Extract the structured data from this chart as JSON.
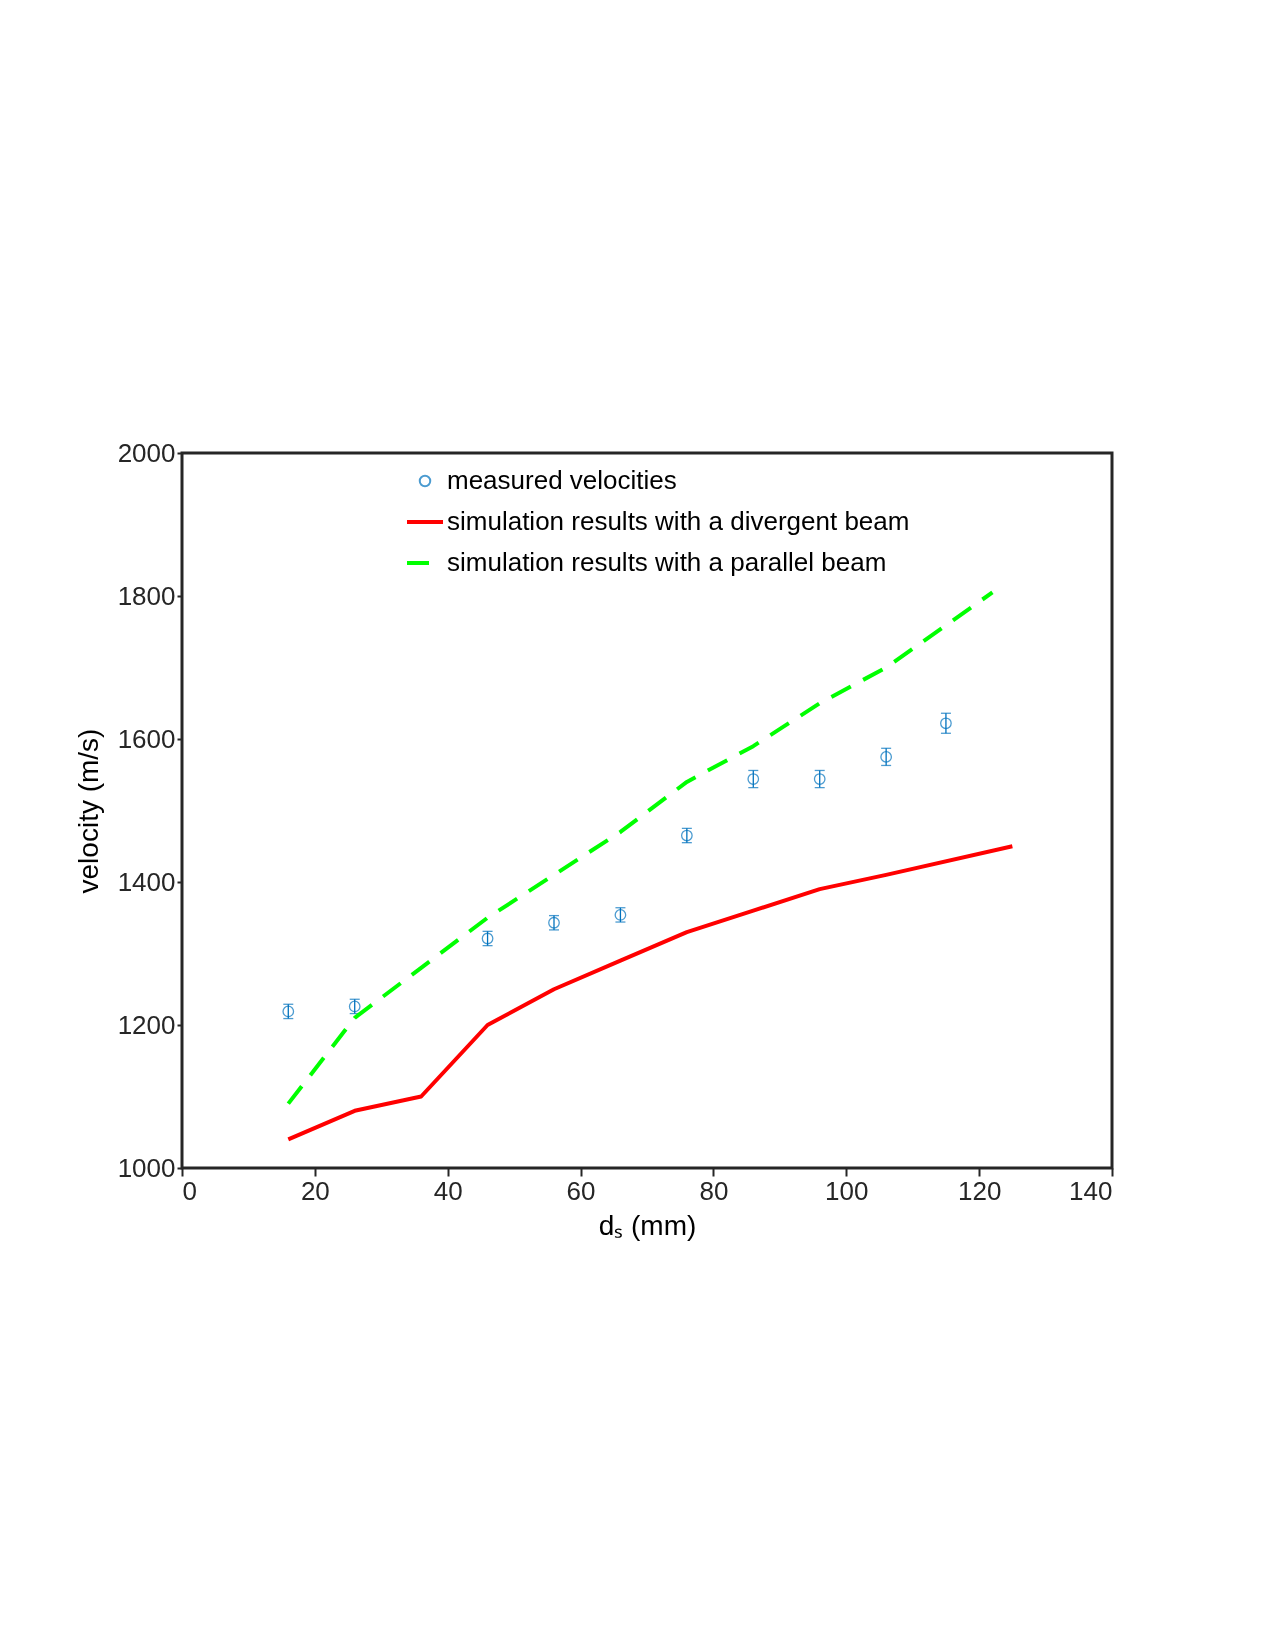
{
  "chart_data": {
    "type": "scatter",
    "xlabel": "dₛ (mm)",
    "ylabel": "velocity (m/s)",
    "xlim": [
      0,
      140
    ],
    "xticks": [
      0,
      20,
      40,
      60,
      80,
      100,
      120,
      140
    ],
    "ylim": [
      1000,
      2000
    ],
    "yticks": [
      1000,
      1200,
      1400,
      1600,
      1800,
      2000
    ],
    "grid": false,
    "legend": "top",
    "series": [
      {
        "name": "measured velocities",
        "marker": "circle",
        "color": "#0072bd",
        "x": [
          16,
          26,
          46,
          56,
          66,
          76,
          86,
          96,
          106,
          115
        ],
        "values": [
          1219,
          1226,
          1321,
          1343,
          1354,
          1465,
          1544,
          1544,
          1575,
          1622
        ],
        "errors": [
          10,
          10,
          10,
          10,
          10,
          10,
          12,
          12,
          12,
          14
        ]
      },
      {
        "name": "simulation results with a divergent beam",
        "type": "line",
        "line_style": "solid",
        "color": "#ff0000",
        "x": [
          16,
          26,
          36,
          46,
          56,
          66,
          76,
          86,
          96,
          106,
          125
        ],
        "values": [
          1040,
          1080,
          1100,
          1200,
          1250,
          1290,
          1330,
          1360,
          1390,
          1410,
          1450
        ]
      },
      {
        "name": "simulation results with a parallel beam",
        "type": "line",
        "line_style": "dashed",
        "color": "#00ff00",
        "x": [
          16,
          26,
          36,
          46,
          56,
          66,
          76,
          86,
          96,
          106,
          122
        ],
        "values": [
          1090,
          1210,
          1280,
          1350,
          1410,
          1470,
          1540,
          1590,
          1650,
          1700,
          1805
        ]
      }
    ]
  }
}
